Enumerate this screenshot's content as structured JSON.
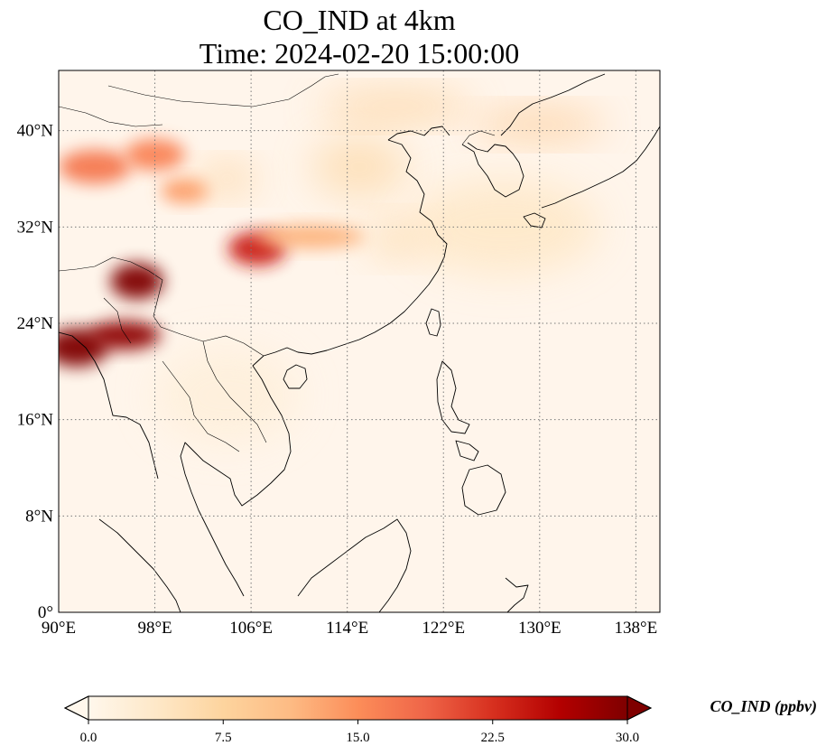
{
  "title": {
    "line1": "CO_IND at 4km",
    "line2": "Time: 2024-02-20 15:00:00"
  },
  "map": {
    "lon_range": [
      90,
      140
    ],
    "lat_range": [
      0,
      45
    ],
    "lon_ticks": [
      {
        "value": 90,
        "label": "90°E"
      },
      {
        "value": 98,
        "label": "98°E"
      },
      {
        "value": 106,
        "label": "106°E"
      },
      {
        "value": 114,
        "label": "114°E"
      },
      {
        "value": 122,
        "label": "122°E"
      },
      {
        "value": 130,
        "label": "130°E"
      },
      {
        "value": 138,
        "label": "138°E"
      }
    ],
    "lat_ticks": [
      {
        "value": 0,
        "label": "0°"
      },
      {
        "value": 8,
        "label": "8°N"
      },
      {
        "value": 16,
        "label": "16°N"
      },
      {
        "value": 24,
        "label": "24°N"
      },
      {
        "value": 32,
        "label": "32°N"
      },
      {
        "value": 40,
        "label": "40°N"
      }
    ],
    "gridlines": true,
    "colormap": "OrRd",
    "background_color": "#fff5eb",
    "plumes": [
      {
        "name": "myanmar-southwest",
        "lon": 91.5,
        "lat": 22.0,
        "rx": 2.6,
        "ry": 1.6,
        "value": 30
      },
      {
        "name": "myanmar-north",
        "lon": 95.5,
        "lat": 23.0,
        "rx": 3.0,
        "ry": 1.2,
        "value": 29
      },
      {
        "name": "yunnan-hotspot",
        "lon": 96.5,
        "lat": 27.5,
        "rx": 2.2,
        "ry": 1.5,
        "value": 30
      },
      {
        "name": "sichuan-chongqing",
        "lon": 106.5,
        "lat": 30.2,
        "rx": 2.4,
        "ry": 1.4,
        "value": 24
      },
      {
        "name": "sichuan-trail",
        "lon": 111.0,
        "lat": 31.2,
        "rx": 4.5,
        "ry": 1.0,
        "value": 12
      },
      {
        "name": "tibet-west",
        "lon": 93.0,
        "lat": 37.0,
        "rx": 3.0,
        "ry": 1.4,
        "value": 17
      },
      {
        "name": "tibet-central",
        "lon": 98.0,
        "lat": 38.0,
        "rx": 2.5,
        "ry": 1.3,
        "value": 16
      },
      {
        "name": "qinghai",
        "lon": 100.5,
        "lat": 35.0,
        "rx": 2.0,
        "ry": 1.0,
        "value": 14
      },
      {
        "name": "gansu",
        "lon": 104.0,
        "lat": 36.0,
        "rx": 2.5,
        "ry": 1.2,
        "value": 8
      },
      {
        "name": "north-china-plain",
        "lon": 115.0,
        "lat": 37.0,
        "rx": 4.0,
        "ry": 2.5,
        "value": 6
      },
      {
        "name": "mongolia-belt",
        "lon": 118.0,
        "lat": 42.0,
        "rx": 6.5,
        "ry": 1.2,
        "value": 8
      },
      {
        "name": "korea-japan-sea",
        "lon": 130.0,
        "lat": 40.5,
        "rx": 5.5,
        "ry": 1.2,
        "value": 9
      },
      {
        "name": "east-china-sea",
        "lon": 127.0,
        "lat": 32.0,
        "rx": 8.0,
        "ry": 4.0,
        "value": 4
      },
      {
        "name": "yangtze-delta",
        "lon": 118.0,
        "lat": 31.0,
        "rx": 2.5,
        "ry": 1.5,
        "value": 6
      },
      {
        "name": "indochina-haze",
        "lon": 104.0,
        "lat": 18.0,
        "rx": 6.0,
        "ry": 4.0,
        "value": 2
      }
    ]
  },
  "colorbar": {
    "vmin": 0,
    "vmax": 30,
    "extend": "both",
    "ticks": [
      {
        "value": 0,
        "label": "0.0"
      },
      {
        "value": 7.5,
        "label": "7.5"
      },
      {
        "value": 15,
        "label": "15.0"
      },
      {
        "value": 22.5,
        "label": "22.5"
      },
      {
        "value": 30,
        "label": "30.0"
      }
    ],
    "stops": [
      "#fff7ec",
      "#fee8c8",
      "#fdd49e",
      "#fdbb84",
      "#fc8d59",
      "#ef6548",
      "#d7301f",
      "#b30000",
      "#7f0000"
    ],
    "label": "CO_IND (ppbv)"
  }
}
